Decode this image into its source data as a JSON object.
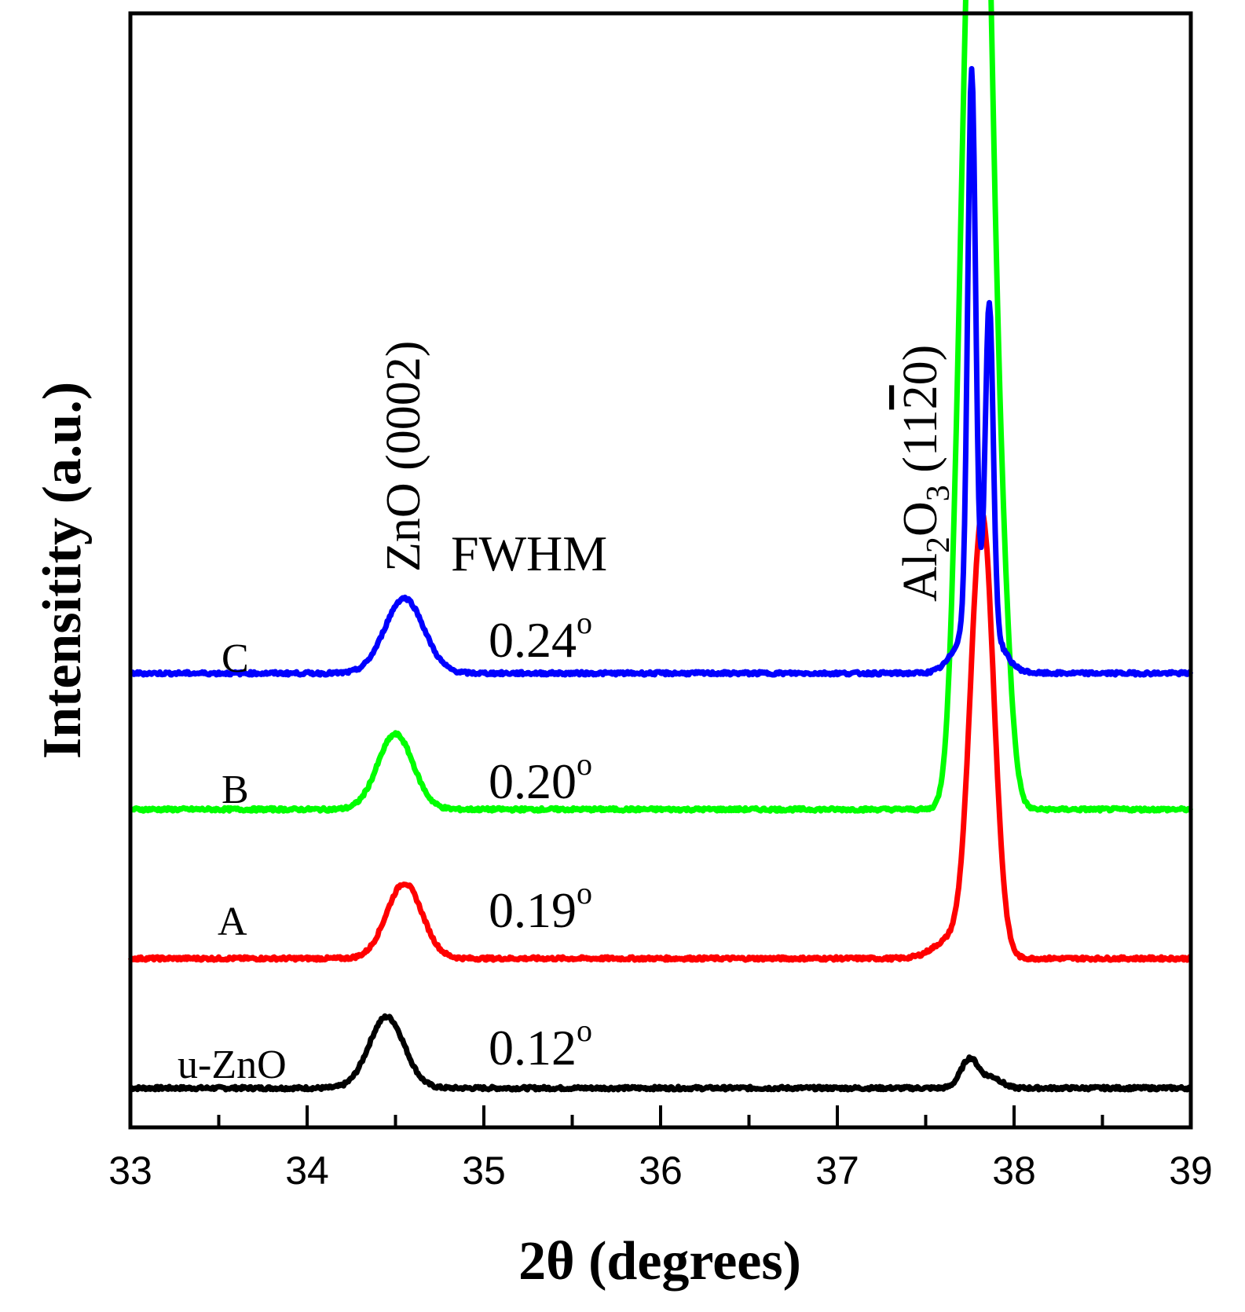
{
  "chart_data": {
    "type": "line",
    "title": "",
    "xlabel": "2θ (degrees)",
    "ylabel": "Intensitity (a.u.)",
    "xlim": [
      33,
      39
    ],
    "xticks": [
      "33",
      "34",
      "35",
      "36",
      "37",
      "38",
      "39"
    ],
    "fwhm_header": "FWHM",
    "annotations": {
      "zno_peak": "ZnO (0002)",
      "al2o3_prefix": "Al",
      "al2o3_sub1": "2",
      "al2o3_mid": "O",
      "al2o3_sub2": "3",
      "al2o3_open": " (11",
      "al2o3_bar": "2",
      "al2o3_close": "0)"
    },
    "series": [
      {
        "name": "u-ZnO",
        "color": "#000000",
        "fwhm": "0.12",
        "fwhm_unit": "o",
        "baseline": 0.0,
        "peaks": [
          {
            "center": 34.45,
            "height": 0.55,
            "width": 0.1
          },
          {
            "center": 37.75,
            "height": 0.23,
            "width": 0.05
          },
          {
            "center": 37.88,
            "height": 0.08,
            "width": 0.05
          }
        ]
      },
      {
        "name": "A",
        "color": "#ff0000",
        "fwhm": "0.19",
        "fwhm_unit": "o",
        "baseline": 1.0,
        "peaks": [
          {
            "center": 34.55,
            "height": 0.58,
            "width": 0.1
          },
          {
            "center": 37.82,
            "height": 3.4,
            "width": 0.065
          },
          {
            "center": 37.65,
            "height": 0.15,
            "width": 0.1
          }
        ]
      },
      {
        "name": "B",
        "color": "#00ff00",
        "fwhm": "0.20",
        "fwhm_unit": "o",
        "baseline": 2.15,
        "peaks": [
          {
            "center": 34.5,
            "height": 0.58,
            "width": 0.1
          },
          {
            "center": 37.74,
            "height": 5.35,
            "width": 0.06
          },
          {
            "center": 37.82,
            "height": 5.8,
            "width": 0.05
          },
          {
            "center": 37.9,
            "height": 2.5,
            "width": 0.06
          }
        ]
      },
      {
        "name": "C",
        "color": "#0000ff",
        "fwhm": "0.24",
        "fwhm_unit": "o",
        "baseline": 3.2,
        "peaks": [
          {
            "center": 34.55,
            "height": 0.58,
            "width": 0.11
          },
          {
            "center": 37.76,
            "height": 4.2,
            "width": 0.022
          },
          {
            "center": 37.86,
            "height": 2.45,
            "width": 0.022
          },
          {
            "center": 37.8,
            "height": 0.5,
            "width": 0.1
          }
        ]
      }
    ]
  }
}
